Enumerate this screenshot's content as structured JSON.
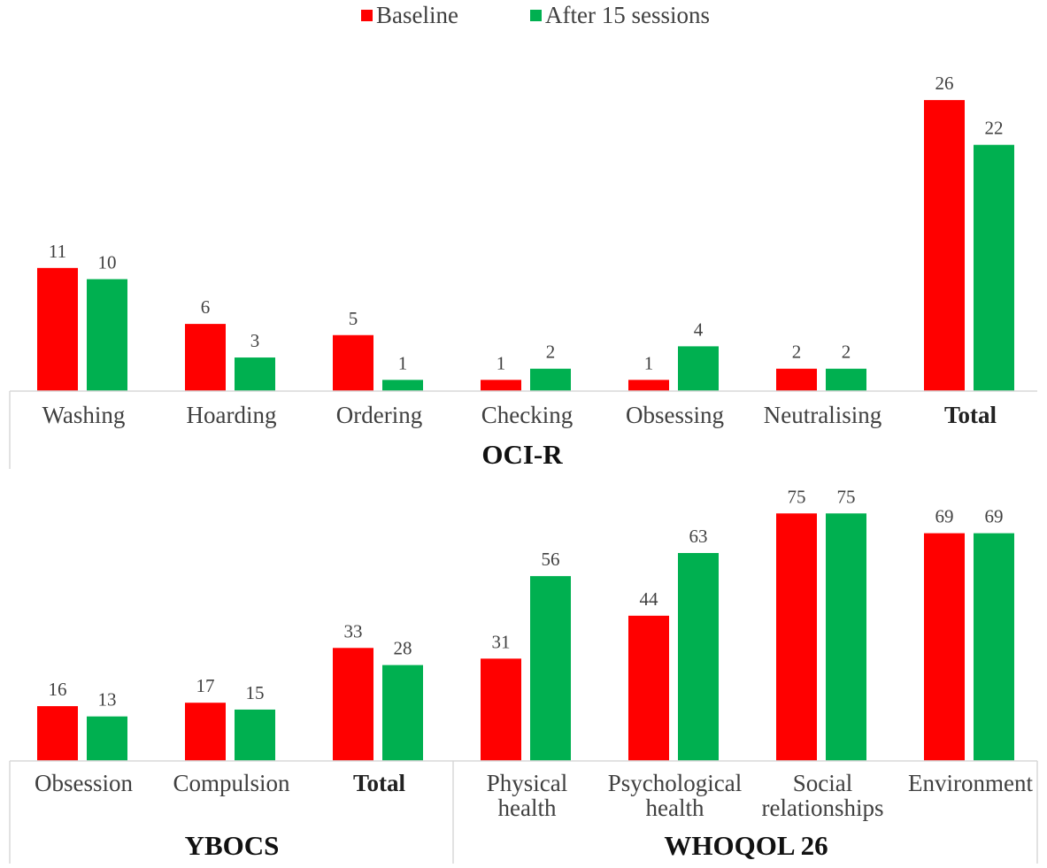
{
  "legend": {
    "items": [
      {
        "label": "Baseline",
        "color": "#FF0000"
      },
      {
        "label": "After 15 sessions",
        "color": "#00B050"
      }
    ],
    "position": "top-center"
  },
  "chart_data": [
    {
      "type": "bar",
      "group_label": "OCI-R",
      "categories": [
        "Washing",
        "Hoarding",
        "Ordering",
        "Checking",
        "Obsessing",
        "Neutralising",
        "Total"
      ],
      "bold_categories": [
        "Total"
      ],
      "series": [
        {
          "name": "Baseline",
          "color": "#FF0000",
          "values": [
            11,
            6,
            5,
            1,
            1,
            2,
            26
          ]
        },
        {
          "name": "After 15 sessions",
          "color": "#00B050",
          "values": [
            10,
            3,
            1,
            2,
            4,
            2,
            22
          ]
        }
      ],
      "data_labels": true,
      "grid": false
    },
    {
      "type": "bar",
      "group_label": "YBOCS",
      "categories": [
        "Obsession",
        "Compulsion",
        "Total"
      ],
      "bold_categories": [
        "Total"
      ],
      "series": [
        {
          "name": "Baseline",
          "color": "#FF0000",
          "values": [
            16,
            17,
            33
          ]
        },
        {
          "name": "After 15 sessions",
          "color": "#00B050",
          "values": [
            13,
            15,
            28
          ]
        }
      ],
      "data_labels": true,
      "grid": false
    },
    {
      "type": "bar",
      "group_label": "WHOQOL 26",
      "categories": [
        [
          "Physical",
          "health"
        ],
        [
          "Psychological",
          "health"
        ],
        [
          "Social",
          "relationships"
        ],
        [
          "Environment"
        ]
      ],
      "series": [
        {
          "name": "Baseline",
          "color": "#FF0000",
          "values": [
            31,
            44,
            75,
            69
          ]
        },
        {
          "name": "After 15 sessions",
          "color": "#00B050",
          "values": [
            56,
            63,
            75,
            69
          ]
        }
      ],
      "data_labels": true,
      "grid": false
    }
  ]
}
